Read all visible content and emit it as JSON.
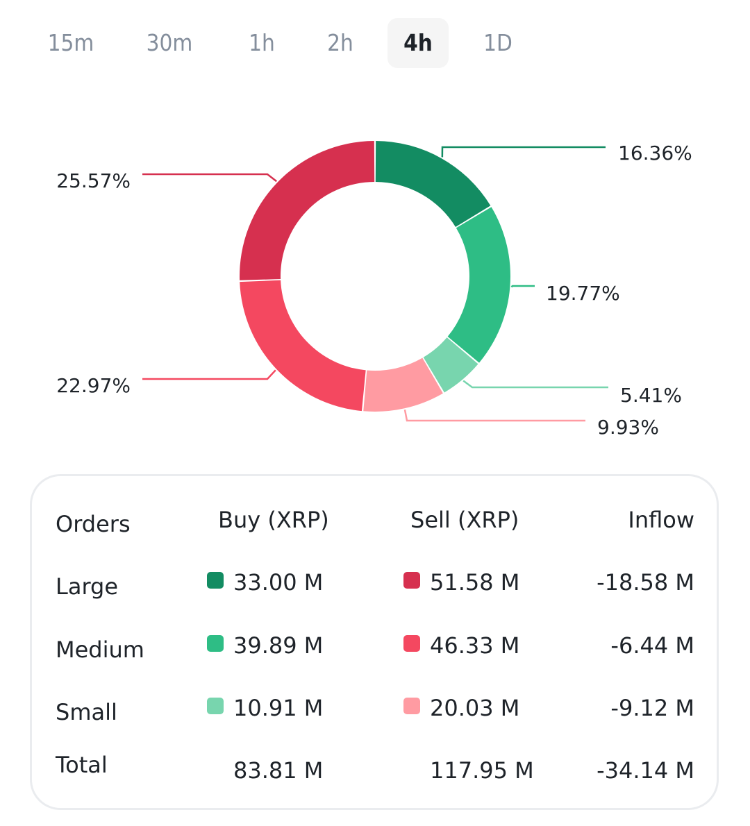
{
  "timeframes": {
    "options": [
      "15m",
      "30m",
      "1h",
      "2h",
      "4h",
      "1D"
    ],
    "selected": "4h"
  },
  "colors": {
    "buy_large": "#138C62",
    "buy_medium": "#2EBD85",
    "buy_small": "#78D5AE",
    "sell_small": "#FF9BA2",
    "sell_medium": "#F44860",
    "sell_large": "#D6304F",
    "text": "#1E2329",
    "muted": "#848E9C"
  },
  "chart_data": {
    "type": "pie",
    "variant": "donut",
    "title": "",
    "slices": [
      {
        "name": "Large Buy",
        "value": 16.36,
        "label": "16.36%",
        "color_key": "buy_large"
      },
      {
        "name": "Medium Buy",
        "value": 19.77,
        "label": "19.77%",
        "color_key": "buy_medium"
      },
      {
        "name": "Small Buy",
        "value": 5.41,
        "label": "5.41%",
        "color_key": "buy_small"
      },
      {
        "name": "Small Sell",
        "value": 9.93,
        "label": "9.93%",
        "color_key": "sell_small"
      },
      {
        "name": "Medium Sell",
        "value": 22.97,
        "label": "22.97%",
        "color_key": "sell_medium"
      },
      {
        "name": "Large Sell",
        "value": 25.57,
        "label": "25.57%",
        "color_key": "sell_large"
      }
    ],
    "start_angle": "top",
    "direction": "clockwise"
  },
  "table": {
    "headers": {
      "orders": "Orders",
      "buy": "Buy (XRP)",
      "sell": "Sell (XRP)",
      "inflow": "Inflow"
    },
    "rows": [
      {
        "label": "Large",
        "buy": "33.00 M",
        "sell": "51.58 M",
        "inflow": "-18.58 M",
        "buy_color": "buy_large",
        "sell_color": "sell_large"
      },
      {
        "label": "Medium",
        "buy": "39.89 M",
        "sell": "46.33 M",
        "inflow": "-6.44 M",
        "buy_color": "buy_medium",
        "sell_color": "sell_medium"
      },
      {
        "label": "Small",
        "buy": "10.91 M",
        "sell": "20.03 M",
        "inflow": "-9.12 M",
        "buy_color": "buy_small",
        "sell_color": "sell_small"
      }
    ],
    "total": {
      "label": "Total",
      "buy": "83.81 M",
      "sell": "117.95 M",
      "inflow": "-34.14 M"
    }
  }
}
